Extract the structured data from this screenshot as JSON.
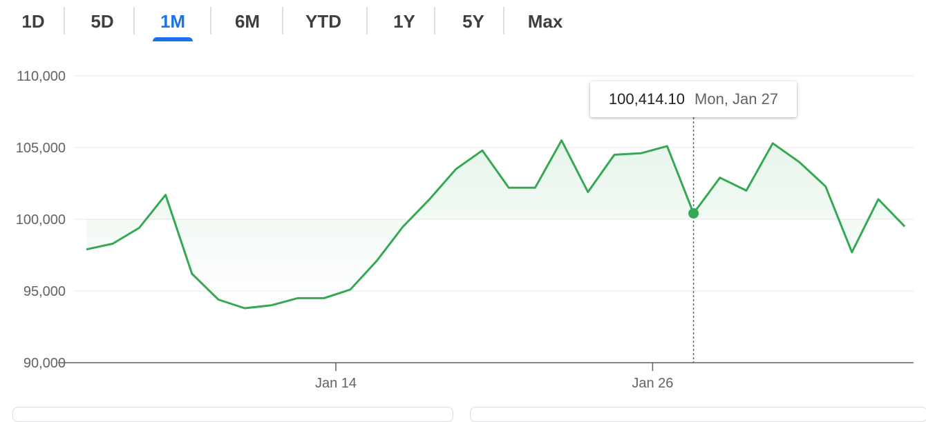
{
  "range_tabs": [
    {
      "label": "1D",
      "active": false
    },
    {
      "label": "5D",
      "active": false
    },
    {
      "label": "1M",
      "active": true
    },
    {
      "label": "6M",
      "active": false
    },
    {
      "label": "YTD",
      "active": false
    },
    {
      "label": "1Y",
      "active": false
    },
    {
      "label": "5Y",
      "active": false
    },
    {
      "label": "Max",
      "active": false
    }
  ],
  "colors": {
    "line": "#34a853",
    "active_tab": "#1a73e8",
    "grid": "#e8eaed",
    "axis": "#5f6368"
  },
  "tooltip": {
    "value": "100,414.10",
    "date": "Mon, Jan 27"
  },
  "chart_data": {
    "type": "area",
    "y_tick_labels": [
      "110,000",
      "105,000",
      "100,000",
      "95,000",
      "90,000"
    ],
    "y_ticks": [
      110000,
      105000,
      100000,
      95000,
      90000
    ],
    "ylim": [
      90000,
      110000
    ],
    "x_tick_labels": [
      "Jan 14",
      "Jan 26"
    ],
    "x_tick_index": [
      9.45,
      21.45
    ],
    "hover_index": 23,
    "series": [
      {
        "values": [
          97900,
          98300,
          99400,
          101700,
          96200,
          94400,
          93800,
          94000,
          94500,
          94500,
          95100,
          97100,
          99500,
          101400,
          103500,
          104800,
          102200,
          102200,
          105500,
          101900,
          104500,
          104600,
          105100,
          100414.1,
          102900,
          102000,
          105300,
          104000,
          102300,
          97700,
          101400,
          99500
        ]
      }
    ]
  }
}
